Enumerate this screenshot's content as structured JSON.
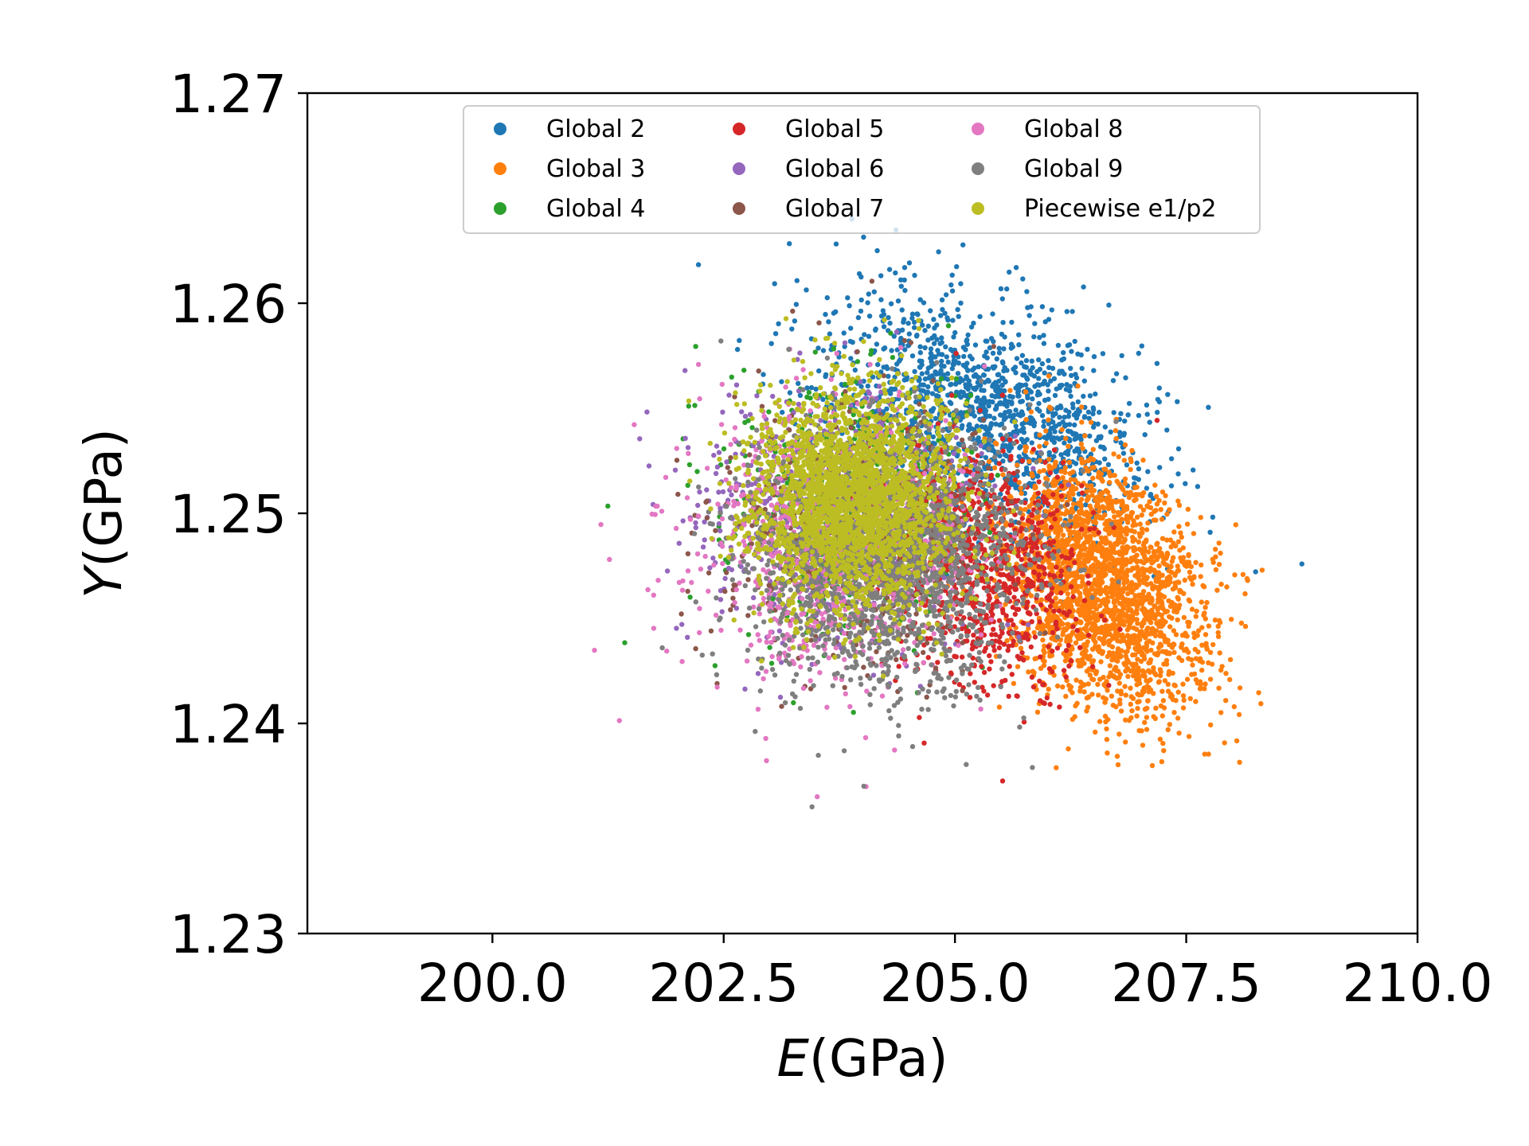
{
  "chart_data": {
    "type": "scatter",
    "title": "",
    "xlabel": {
      "italic": "E",
      "rest": "(GPa)"
    },
    "ylabel": {
      "italic": "Y",
      "rest": "(GPa)"
    },
    "xlim": [
      198.0,
      210.0
    ],
    "ylim": [
      1.23,
      1.27
    ],
    "xticks": [
      200.0,
      202.5,
      205.0,
      207.5,
      210.0
    ],
    "xtick_labels": [
      "200.0",
      "202.5",
      "205.0",
      "207.5",
      "210.0"
    ],
    "yticks": [
      1.23,
      1.24,
      1.25,
      1.26,
      1.27
    ],
    "ytick_labels": [
      "1.23",
      "1.24",
      "1.25",
      "1.26",
      "1.27"
    ],
    "grid": false,
    "legend_position": "top-center",
    "legend_columns": 3,
    "series": [
      {
        "name": "Global 2",
        "color": "#1f77b4",
        "center": [
          205.3,
          1.2548
        ],
        "spread": [
          0.85,
          0.0028
        ],
        "tilt": -0.45,
        "count": 1400
      },
      {
        "name": "Global 3",
        "color": "#ff7f0e",
        "center": [
          206.6,
          1.2465
        ],
        "spread": [
          0.55,
          0.003
        ],
        "tilt": -0.35,
        "count": 2400
      },
      {
        "name": "Global 4",
        "color": "#2ca02c",
        "center": [
          203.8,
          1.25
        ],
        "spread": [
          0.7,
          0.0032
        ],
        "tilt": 0.0,
        "count": 500
      },
      {
        "name": "Global 5",
        "color": "#d62728",
        "center": [
          205.3,
          1.2475
        ],
        "spread": [
          0.55,
          0.003
        ],
        "tilt": -0.2,
        "count": 900
      },
      {
        "name": "Global 6",
        "color": "#9467bd",
        "center": [
          203.6,
          1.25
        ],
        "spread": [
          0.75,
          0.0032
        ],
        "tilt": 0.0,
        "count": 600
      },
      {
        "name": "Global 7",
        "color": "#8c564b",
        "center": [
          204.0,
          1.249
        ],
        "spread": [
          0.7,
          0.0032
        ],
        "tilt": 0.0,
        "count": 600
      },
      {
        "name": "Global 8",
        "color": "#e377c2",
        "center": [
          203.7,
          1.2485
        ],
        "spread": [
          0.75,
          0.0033
        ],
        "tilt": 0.0,
        "count": 900
      },
      {
        "name": "Global 9",
        "color": "#7f7f7f",
        "center": [
          204.3,
          1.248
        ],
        "spread": [
          0.75,
          0.003
        ],
        "tilt": 0.0,
        "count": 1800
      },
      {
        "name": "Piecewise e1/p2",
        "color": "#bcbd22",
        "center": [
          203.9,
          1.2508
        ],
        "spread": [
          0.55,
          0.0026
        ],
        "tilt": 0.0,
        "count": 2400
      }
    ]
  }
}
